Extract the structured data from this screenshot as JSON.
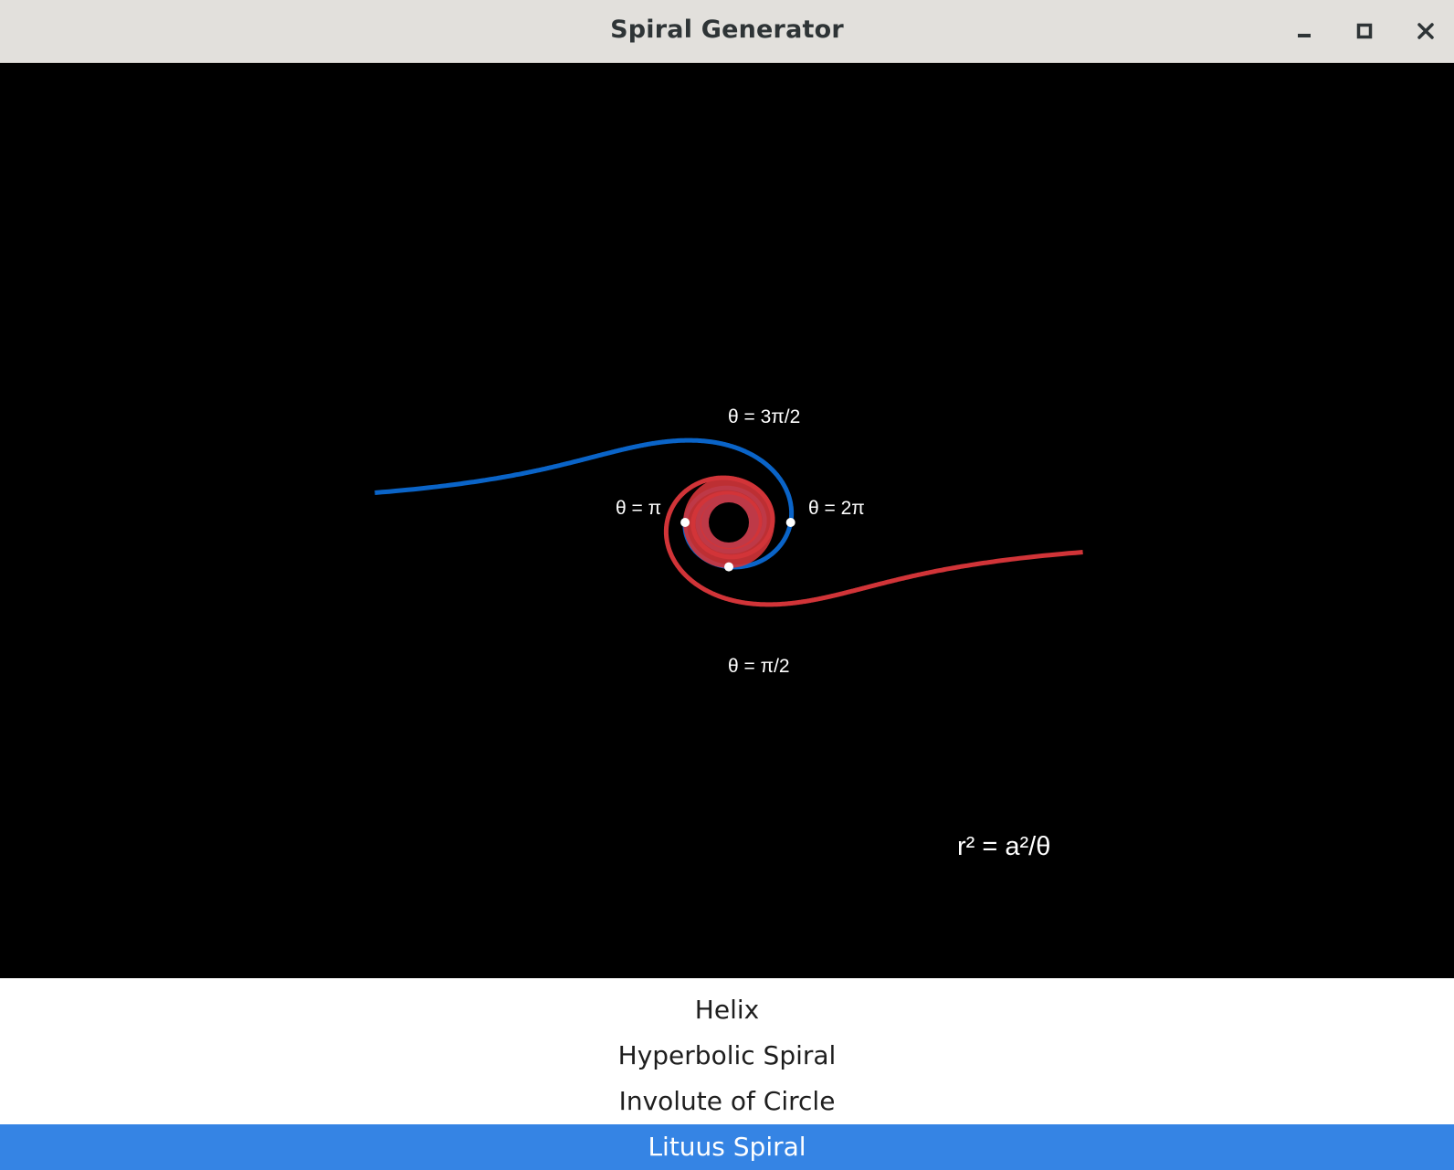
{
  "window": {
    "title": "Spiral Generator",
    "controls": [
      {
        "name": "minimize",
        "icon": "minimize-icon"
      },
      {
        "name": "maximize",
        "icon": "maximize-icon"
      },
      {
        "name": "close",
        "icon": "close-icon"
      }
    ]
  },
  "canvas": {
    "background": "#000000",
    "formula": "r² = a²/θ",
    "angle_labels": {
      "three_half_pi": "θ = 3π/2",
      "pi": "θ = π",
      "two_pi": "θ = 2π",
      "half_pi": "θ = π/2"
    },
    "curves": [
      {
        "name": "positive-branch",
        "color": "#d13438"
      },
      {
        "name": "negative-branch",
        "color": "#0a64c8"
      }
    ],
    "marker_color": "#ffffff"
  },
  "spiral_list": {
    "items": [
      "Helix",
      "Hyperbolic Spiral",
      "Involute of Circle",
      "Lituus Spiral"
    ],
    "selected": "Lituus Spiral",
    "selected_color": "#3584e4"
  }
}
